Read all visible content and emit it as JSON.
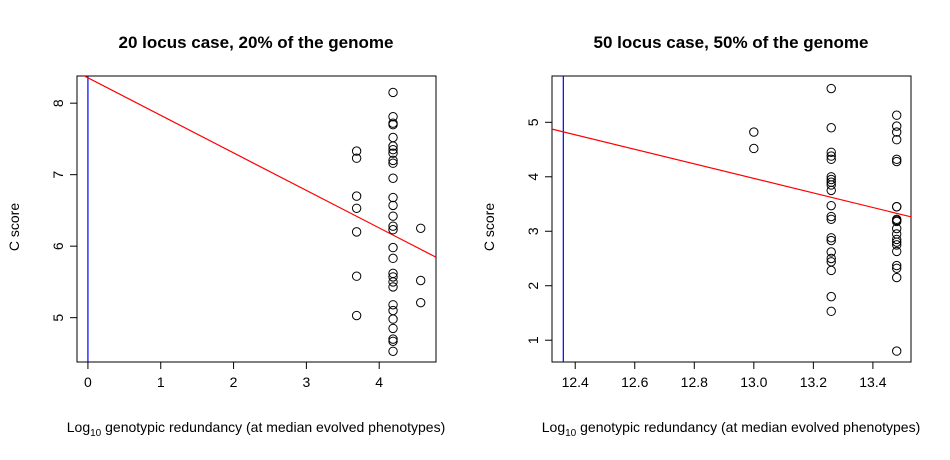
{
  "chart_data": [
    {
      "type": "scatter",
      "title": "20 locus case, 20% of the genome",
      "xlabel_prefix": "Log",
      "xlabel_sub": "10",
      "xlabel_rest": " genotypic redundancy (at median evolved phenotypes)",
      "ylabel": "C score",
      "xlim": [
        -0.15,
        4.78
      ],
      "ylim": [
        4.38,
        8.38
      ],
      "xticks": [
        0,
        1,
        2,
        3,
        4
      ],
      "yticks": [
        5,
        6,
        7,
        8
      ],
      "vline": 0,
      "vline_color": "#0000ff",
      "fit_line": {
        "intercept": 8.355,
        "slope": -0.525,
        "color": "#ff0000"
      },
      "points": [
        {
          "x": 3.69,
          "y": 7.33
        },
        {
          "x": 3.69,
          "y": 7.23
        },
        {
          "x": 3.69,
          "y": 6.7
        },
        {
          "x": 3.69,
          "y": 6.53
        },
        {
          "x": 3.69,
          "y": 6.2
        },
        {
          "x": 3.69,
          "y": 5.58
        },
        {
          "x": 3.69,
          "y": 5.03
        },
        {
          "x": 4.19,
          "y": 8.15
        },
        {
          "x": 4.19,
          "y": 7.81
        },
        {
          "x": 4.19,
          "y": 7.72
        },
        {
          "x": 4.19,
          "y": 7.7
        },
        {
          "x": 4.19,
          "y": 7.52
        },
        {
          "x": 4.19,
          "y": 7.4
        },
        {
          "x": 4.19,
          "y": 7.35
        },
        {
          "x": 4.19,
          "y": 7.3
        },
        {
          "x": 4.19,
          "y": 7.2
        },
        {
          "x": 4.19,
          "y": 7.16
        },
        {
          "x": 4.19,
          "y": 6.95
        },
        {
          "x": 4.19,
          "y": 6.68
        },
        {
          "x": 4.19,
          "y": 6.57
        },
        {
          "x": 4.19,
          "y": 6.42
        },
        {
          "x": 4.19,
          "y": 6.28
        },
        {
          "x": 4.19,
          "y": 6.23
        },
        {
          "x": 4.19,
          "y": 5.98
        },
        {
          "x": 4.19,
          "y": 5.83
        },
        {
          "x": 4.19,
          "y": 5.62
        },
        {
          "x": 4.19,
          "y": 5.57
        },
        {
          "x": 4.19,
          "y": 5.5
        },
        {
          "x": 4.19,
          "y": 5.43
        },
        {
          "x": 4.19,
          "y": 5.18
        },
        {
          "x": 4.19,
          "y": 5.1
        },
        {
          "x": 4.19,
          "y": 4.98
        },
        {
          "x": 4.19,
          "y": 4.85
        },
        {
          "x": 4.19,
          "y": 4.7
        },
        {
          "x": 4.19,
          "y": 4.67
        },
        {
          "x": 4.19,
          "y": 4.53
        },
        {
          "x": 4.57,
          "y": 6.25
        },
        {
          "x": 4.57,
          "y": 5.52
        },
        {
          "x": 4.57,
          "y": 5.21
        }
      ]
    },
    {
      "type": "scatter",
      "title": "50 locus case, 50% of the genome",
      "xlabel_prefix": "Log",
      "xlabel_sub": "10",
      "xlabel_rest": " genotypic redundancy (at median evolved phenotypes)",
      "ylabel": "C score",
      "xlim": [
        12.322,
        13.528
      ],
      "ylim": [
        0.6,
        5.85
      ],
      "xticks": [
        12.4,
        12.6,
        12.8,
        13.0,
        13.2,
        13.4
      ],
      "xtick_labels": [
        "12.4",
        "12.6",
        "12.8",
        "13.0",
        "13.2",
        "13.4"
      ],
      "yticks": [
        1,
        2,
        3,
        4,
        5
      ],
      "vline": 12.36,
      "vline_color": "#0000ff",
      "fit_line": {
        "intercept": 4.875,
        "slope": -1.335,
        "x0": 12.322,
        "color": "#ff0000"
      },
      "points": [
        {
          "x": 13.0,
          "y": 4.82
        },
        {
          "x": 13.0,
          "y": 4.52
        },
        {
          "x": 13.26,
          "y": 5.62
        },
        {
          "x": 13.26,
          "y": 4.9
        },
        {
          "x": 13.26,
          "y": 4.45
        },
        {
          "x": 13.26,
          "y": 4.38
        },
        {
          "x": 13.26,
          "y": 4.32
        },
        {
          "x": 13.26,
          "y": 4.0
        },
        {
          "x": 13.26,
          "y": 3.95
        },
        {
          "x": 13.26,
          "y": 3.9
        },
        {
          "x": 13.26,
          "y": 3.85
        },
        {
          "x": 13.26,
          "y": 3.75
        },
        {
          "x": 13.26,
          "y": 3.47
        },
        {
          "x": 13.26,
          "y": 3.27
        },
        {
          "x": 13.26,
          "y": 3.22
        },
        {
          "x": 13.26,
          "y": 2.88
        },
        {
          "x": 13.26,
          "y": 2.83
        },
        {
          "x": 13.26,
          "y": 2.62
        },
        {
          "x": 13.26,
          "y": 2.5
        },
        {
          "x": 13.26,
          "y": 2.44
        },
        {
          "x": 13.26,
          "y": 2.28
        },
        {
          "x": 13.26,
          "y": 1.8
        },
        {
          "x": 13.26,
          "y": 1.53
        },
        {
          "x": 13.48,
          "y": 5.13
        },
        {
          "x": 13.48,
          "y": 4.93
        },
        {
          "x": 13.48,
          "y": 4.82
        },
        {
          "x": 13.48,
          "y": 4.68
        },
        {
          "x": 13.48,
          "y": 4.32
        },
        {
          "x": 13.48,
          "y": 4.28
        },
        {
          "x": 13.48,
          "y": 3.45
        },
        {
          "x": 13.48,
          "y": 3.45
        },
        {
          "x": 13.48,
          "y": 3.22
        },
        {
          "x": 13.48,
          "y": 3.2
        },
        {
          "x": 13.48,
          "y": 3.18
        },
        {
          "x": 13.48,
          "y": 3.05
        },
        {
          "x": 13.48,
          "y": 2.95
        },
        {
          "x": 13.48,
          "y": 2.85
        },
        {
          "x": 13.48,
          "y": 2.8
        },
        {
          "x": 13.48,
          "y": 2.75
        },
        {
          "x": 13.48,
          "y": 2.63
        },
        {
          "x": 13.48,
          "y": 2.37
        },
        {
          "x": 13.48,
          "y": 2.32
        },
        {
          "x": 13.48,
          "y": 2.15
        },
        {
          "x": 13.48,
          "y": 0.8
        }
      ]
    }
  ]
}
